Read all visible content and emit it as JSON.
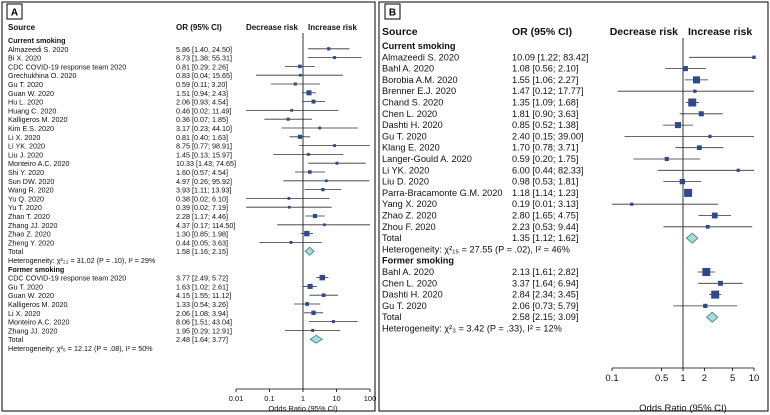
{
  "chart_data": [
    {
      "panel": "A",
      "type": "forest",
      "header": {
        "source": "Source",
        "or": "OR (95% CI)",
        "decrease": "Decrease risk",
        "increase": "Increase risk"
      },
      "xlabel": "Odds Ratio (95% CI)",
      "xscale": "log",
      "xlim": [
        0.01,
        100
      ],
      "ticks": [
        "0.01",
        "0.1",
        "1",
        "10",
        "100"
      ],
      "rows": [
        {
          "kind": "group",
          "label": "Current smoking"
        },
        {
          "kind": "study",
          "label": "Almazeedi S. 2020",
          "or_text": "5.86 [1.40, 24.50]",
          "or": 5.86,
          "lo": 1.4,
          "hi": 24.5
        },
        {
          "kind": "study",
          "label": "Bi X. 2020",
          "or_text": "8.73 [1.38; 55.31]",
          "or": 8.73,
          "lo": 1.38,
          "hi": 55.31
        },
        {
          "kind": "study",
          "label": "CDC COVID-19 response team 2020",
          "or_text": "0.81 [0.29; 2.26]",
          "or": 0.81,
          "lo": 0.29,
          "hi": 2.26
        },
        {
          "kind": "study",
          "label": "Grechukhina O. 2020",
          "or_text": "0.83 [0.04; 15.65]",
          "or": 0.83,
          "lo": 0.04,
          "hi": 15.65
        },
        {
          "kind": "study",
          "label": "Gu T. 2020",
          "or_text": "0.59 [0.11; 3.20]",
          "or": 0.59,
          "lo": 0.11,
          "hi": 3.2
        },
        {
          "kind": "study",
          "label": "Guan W. 2020",
          "or_text": "1.51 [0.94; 2.43]",
          "or": 1.51,
          "lo": 0.94,
          "hi": 2.43
        },
        {
          "kind": "study",
          "label": "Hu L. 2020",
          "or_text": "2.06 [0.93; 4.54]",
          "or": 2.06,
          "lo": 0.93,
          "hi": 4.54
        },
        {
          "kind": "study",
          "label": "Huang C. 2020",
          "or_text": "0.46 [0.02; 11.49]",
          "or": 0.46,
          "lo": 0.02,
          "hi": 11.49
        },
        {
          "kind": "study",
          "label": "Kalligeros M. 2020",
          "or_text": "0.36 [0.07; 1.85]",
          "or": 0.36,
          "lo": 0.07,
          "hi": 1.85
        },
        {
          "kind": "study",
          "label": "Kim E.S. 2020",
          "or_text": "3.17 [0.23; 44.10]",
          "or": 3.17,
          "lo": 0.23,
          "hi": 44.1
        },
        {
          "kind": "study",
          "label": "Li X. 2020",
          "or_text": "0.81 [0.40; 1.63]",
          "or": 0.81,
          "lo": 0.4,
          "hi": 1.63
        },
        {
          "kind": "study",
          "label": "Li YK. 2020",
          "or_text": "8.75 [0.77; 98.91]",
          "or": 8.75,
          "lo": 0.77,
          "hi": 98.91
        },
        {
          "kind": "study",
          "label": "Liu J. 2020",
          "or_text": "1.45 [0.13; 15.97]",
          "or": 1.45,
          "lo": 0.13,
          "hi": 15.97
        },
        {
          "kind": "study",
          "label": "Monteiro A.C. 2020",
          "or_text": "10.33 [1.43; 74.65]",
          "or": 10.33,
          "lo": 1.43,
          "hi": 74.65
        },
        {
          "kind": "study",
          "label": "Shi Y. 2020",
          "or_text": "1.60 [0.57; 4.54]",
          "or": 1.6,
          "lo": 0.57,
          "hi": 4.54
        },
        {
          "kind": "study",
          "label": "Sun DW. 2020",
          "or_text": "4.97 [0.26; 95.92]",
          "or": 4.97,
          "lo": 0.26,
          "hi": 95.92
        },
        {
          "kind": "study",
          "label": "Wang R. 2020",
          "or_text": "3.93 [1.11; 13.93]",
          "or": 3.93,
          "lo": 1.11,
          "hi": 13.93
        },
        {
          "kind": "study",
          "label": "Yu Q. 2020",
          "or_text": "0.38 [0.02; 6.10]",
          "or": 0.38,
          "lo": 0.02,
          "hi": 6.1
        },
        {
          "kind": "study",
          "label": "Yu T. 2020",
          "or_text": "0.39 [0.02; 7.19]",
          "or": 0.39,
          "lo": 0.02,
          "hi": 7.19
        },
        {
          "kind": "study",
          "label": "Zhan T. 2020",
          "or_text": "2.28 [1.17; 4.46]",
          "or": 2.28,
          "lo": 1.17,
          "hi": 4.46
        },
        {
          "kind": "study",
          "label": "Zhang JJ. 2020",
          "or_text": "4.37 [0.17; 114.50]",
          "or": 4.37,
          "lo": 0.17,
          "hi": 114.5
        },
        {
          "kind": "study",
          "label": "Zhao Z. 2020",
          "or_text": "1.30 [0.85; 1.98]",
          "or": 1.3,
          "lo": 0.85,
          "hi": 1.98
        },
        {
          "kind": "study",
          "label": "Zheng Y. 2020",
          "or_text": "0.44 [0.05; 3.63]",
          "or": 0.44,
          "lo": 0.05,
          "hi": 3.63
        },
        {
          "kind": "total",
          "label": "Total",
          "or_text": "1.58 [1.16; 2.15]",
          "or": 1.58,
          "lo": 1.16,
          "hi": 2.15
        },
        {
          "kind": "het",
          "label": "Heterogeneity: χ²₂₂ = 31.02 (P = .10), I² = 29%"
        },
        {
          "kind": "group",
          "label": "Former smoking"
        },
        {
          "kind": "study",
          "label": "CDC COVID-19 response team 2020",
          "or_text": "3.77 [2.49; 5.72]",
          "or": 3.77,
          "lo": 2.49,
          "hi": 5.72
        },
        {
          "kind": "study",
          "label": "Gu T. 2020",
          "or_text": "1.63 [1.02; 2.61]",
          "or": 1.63,
          "lo": 1.02,
          "hi": 2.61
        },
        {
          "kind": "study",
          "label": "Guan W. 2020",
          "or_text": "4.15 [1.55; 11.12]",
          "or": 4.15,
          "lo": 1.55,
          "hi": 11.12
        },
        {
          "kind": "study",
          "label": "Kalligeros M. 2020",
          "or_text": "1.33 [0.54; 3.26]",
          "or": 1.33,
          "lo": 0.54,
          "hi": 3.26
        },
        {
          "kind": "study",
          "label": "Li X. 2020",
          "or_text": "2.06 [1.08; 3.94]",
          "or": 2.06,
          "lo": 1.08,
          "hi": 3.94
        },
        {
          "kind": "study",
          "label": "Monteiro A.C. 2020",
          "or_text": "8.06 [1.51; 43.04]",
          "or": 8.06,
          "lo": 1.51,
          "hi": 43.04
        },
        {
          "kind": "study",
          "label": "Zhang JJ. 2020",
          "or_text": "1.95 [0.29; 12.91]",
          "or": 1.95,
          "lo": 0.29,
          "hi": 12.91
        },
        {
          "kind": "total",
          "label": "Total",
          "or_text": "2.48 [1.64; 3.77]",
          "or": 2.48,
          "lo": 1.64,
          "hi": 3.77
        },
        {
          "kind": "het",
          "label": "Heterogeneity: χ²₆ = 12.12 (P = .08), I² = 50%"
        }
      ]
    },
    {
      "panel": "B",
      "type": "forest",
      "header": {
        "source": "Source",
        "or": "OR (95% CI)",
        "decrease": "Decrease risk",
        "increase": "Increase risk"
      },
      "xlabel": "Odds Ratio (95% CI)",
      "xscale": "log",
      "xlim": [
        0.1,
        10
      ],
      "ticks": [
        "0.1",
        "0.5",
        "1",
        "2",
        "5",
        "10"
      ],
      "rows": [
        {
          "kind": "group",
          "label": "Current smoking"
        },
        {
          "kind": "study",
          "label": "Almazeedi S. 2020",
          "or_text": "10.09 [1.22; 83.42]",
          "or": 10.09,
          "lo": 1.22,
          "hi": 83.42
        },
        {
          "kind": "study",
          "label": "Bahl A. 2020",
          "or_text": "1.08 [0.56; 2.10]",
          "or": 1.08,
          "lo": 0.56,
          "hi": 2.1
        },
        {
          "kind": "study",
          "label": "Borobia A.M. 2020",
          "or_text": "1.55 [1.06; 2.27]",
          "or": 1.55,
          "lo": 1.06,
          "hi": 2.27
        },
        {
          "kind": "study",
          "label": "Brenner E.J. 2020",
          "or_text": "1.47 [0.12; 17.77]",
          "or": 1.47,
          "lo": 0.12,
          "hi": 17.77
        },
        {
          "kind": "study",
          "label": "Chand S. 2020",
          "or_text": "1.35 [1.09; 1.68]",
          "or": 1.35,
          "lo": 1.09,
          "hi": 1.68
        },
        {
          "kind": "study",
          "label": "Chen L. 2020",
          "or_text": "1.81 [0.90; 3.63]",
          "or": 1.81,
          "lo": 0.9,
          "hi": 3.63
        },
        {
          "kind": "study",
          "label": "Dashti H. 2020",
          "or_text": "0.85 [0.52; 1.38]",
          "or": 0.85,
          "lo": 0.52,
          "hi": 1.38
        },
        {
          "kind": "study",
          "label": "Gu T. 2020",
          "or_text": "2.40 [0.15; 39.00]",
          "or": 2.4,
          "lo": 0.15,
          "hi": 39.0
        },
        {
          "kind": "study",
          "label": "Klang E. 2020",
          "or_text": "1.70 [0.78; 3.71]",
          "or": 1.7,
          "lo": 0.78,
          "hi": 3.71
        },
        {
          "kind": "study",
          "label": "Langer-Gould A. 2020",
          "or_text": "0.59 [0.20; 1.75]",
          "or": 0.59,
          "lo": 0.2,
          "hi": 1.75
        },
        {
          "kind": "study",
          "label": "Li YK. 2020",
          "or_text": "6.00 [0.44; 82.33]",
          "or": 6.0,
          "lo": 0.44,
          "hi": 82.33
        },
        {
          "kind": "study",
          "label": "Liu D. 2020",
          "or_text": "0.98 [0.53; 1.81]",
          "or": 0.98,
          "lo": 0.53,
          "hi": 1.81
        },
        {
          "kind": "study",
          "label": "Parra-Bracamonte G.M. 2020",
          "or_text": "1.18 [1.14; 1.23]",
          "or": 1.18,
          "lo": 1.14,
          "hi": 1.23
        },
        {
          "kind": "study",
          "label": "Yang X. 2020",
          "or_text": "0.19 [0.01; 3.13]",
          "or": 0.19,
          "lo": 0.01,
          "hi": 3.13
        },
        {
          "kind": "study",
          "label": "Zhao Z. 2020",
          "or_text": "2.80 [1.65; 4.75]",
          "or": 2.8,
          "lo": 1.65,
          "hi": 4.75
        },
        {
          "kind": "study",
          "label": "Zhou F. 2020",
          "or_text": "2.23 [0.53; 9.44]",
          "or": 2.23,
          "lo": 0.53,
          "hi": 9.44
        },
        {
          "kind": "total",
          "label": "Total",
          "or_text": "1.35 [1.12; 1.62]",
          "or": 1.35,
          "lo": 1.12,
          "hi": 1.62
        },
        {
          "kind": "het",
          "label": "Heterogeneity: χ²₁₅ = 27.55 (P = .02), I² = 46%"
        },
        {
          "kind": "group",
          "label": "Former smoking"
        },
        {
          "kind": "study",
          "label": "Bahl A. 2020",
          "or_text": "2.13 [1.61; 2.82]",
          "or": 2.13,
          "lo": 1.61,
          "hi": 2.82
        },
        {
          "kind": "study",
          "label": "Chen L. 2020",
          "or_text": "3.37 [1.64; 6.94]",
          "or": 3.37,
          "lo": 1.64,
          "hi": 6.94
        },
        {
          "kind": "study",
          "label": "Dashti H. 2020",
          "or_text": "2.84 [2.34; 3.45]",
          "or": 2.84,
          "lo": 2.34,
          "hi": 3.45
        },
        {
          "kind": "study",
          "label": "Gu T. 2020",
          "or_text": "2.06 [0.73; 5.79]",
          "or": 2.06,
          "lo": 0.73,
          "hi": 5.79
        },
        {
          "kind": "total",
          "label": "Total",
          "or_text": "2.58 [2.15; 3.09]",
          "or": 2.58,
          "lo": 2.15,
          "hi": 3.09
        },
        {
          "kind": "het",
          "label": "Heterogeneity: χ²₃ = 3.42 (P = .33), I² = 12%"
        }
      ]
    }
  ],
  "colors": {
    "marker": "#2e4a8c",
    "diamond": "#a9dcd6",
    "diamond_stroke": "#3d7f7a",
    "line": "#333333"
  }
}
